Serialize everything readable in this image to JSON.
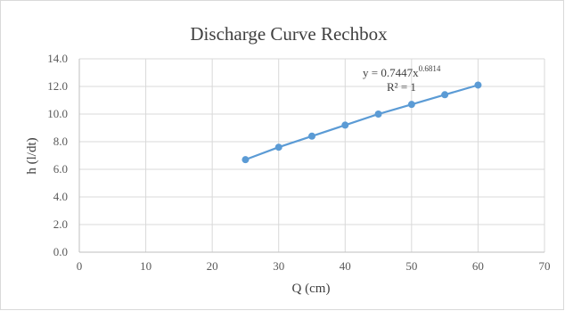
{
  "chart_data": {
    "type": "scatter",
    "title": "Discharge Curve Rechbox",
    "xlabel": "Q (cm)",
    "ylabel": "h (l/dt)",
    "xlim": [
      0,
      70
    ],
    "ylim": [
      0,
      14
    ],
    "x_ticks": [
      "0",
      "10",
      "20",
      "30",
      "40",
      "50",
      "60",
      "70"
    ],
    "y_ticks": [
      "0.0",
      "2.0",
      "4.0",
      "6.0",
      "8.0",
      "10.0",
      "12.0",
      "14.0"
    ],
    "grid": true,
    "series": [
      {
        "points": [
          {
            "x": 25,
            "y": 6.7
          },
          {
            "x": 30,
            "y": 7.6
          },
          {
            "x": 35,
            "y": 8.4
          },
          {
            "x": 40,
            "y": 9.2
          },
          {
            "x": 45,
            "y": 10.0
          },
          {
            "x": 50,
            "y": 10.7
          },
          {
            "x": 55,
            "y": 11.4
          },
          {
            "x": 60,
            "y": 12.1
          }
        ],
        "color": "#5b9bd5"
      }
    ],
    "trendline": {
      "type": "power",
      "equation_prefix": "y = 0.7447x",
      "equation_exponent": "0.6814",
      "r_squared": "R² = 1"
    }
  }
}
